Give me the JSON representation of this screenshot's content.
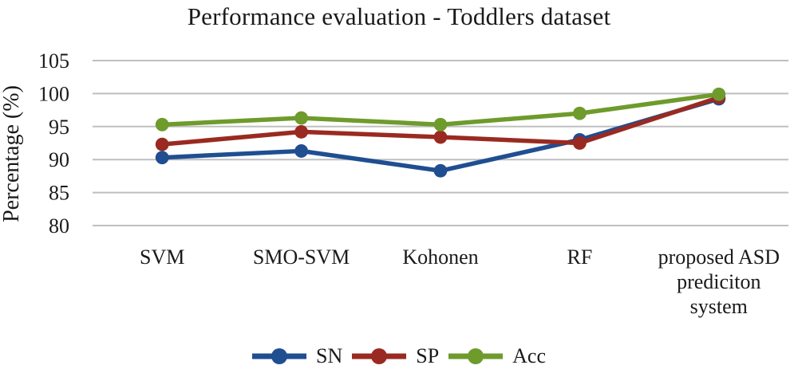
{
  "chart_data": {
    "type": "line",
    "title": "Performance evaluation - Toddlers dataset",
    "ylabel": "Percentage (%)",
    "xlabel": "",
    "categories": [
      "SVM",
      "SMO-SVM",
      "Kohonen",
      "RF",
      "proposed ASD prediciton system"
    ],
    "category_display_lines": [
      [
        "SVM"
      ],
      [
        "SMO-SVM"
      ],
      [
        "Kohonen"
      ],
      [
        "RF"
      ],
      [
        "proposed ASD",
        "prediciton",
        "system"
      ]
    ],
    "series": [
      {
        "name": "SN",
        "color": "#1f4e91",
        "values": [
          90.3,
          91.3,
          88.3,
          93.0,
          99.2
        ]
      },
      {
        "name": "SP",
        "color": "#9a2a21",
        "values": [
          92.3,
          94.2,
          93.4,
          92.5,
          99.4
        ]
      },
      {
        "name": "Acc",
        "color": "#6e9b2c",
        "values": [
          95.3,
          96.3,
          95.3,
          97.0,
          99.9
        ]
      }
    ],
    "ylim": [
      80,
      105
    ],
    "yticks": [
      105,
      100,
      95,
      90,
      85,
      80
    ],
    "grid": true,
    "gridline_color": "#bfbfbf",
    "marker": "circle",
    "legend_position": "bottom",
    "background": "#ffffff",
    "text_color": "#1a1a1a"
  }
}
